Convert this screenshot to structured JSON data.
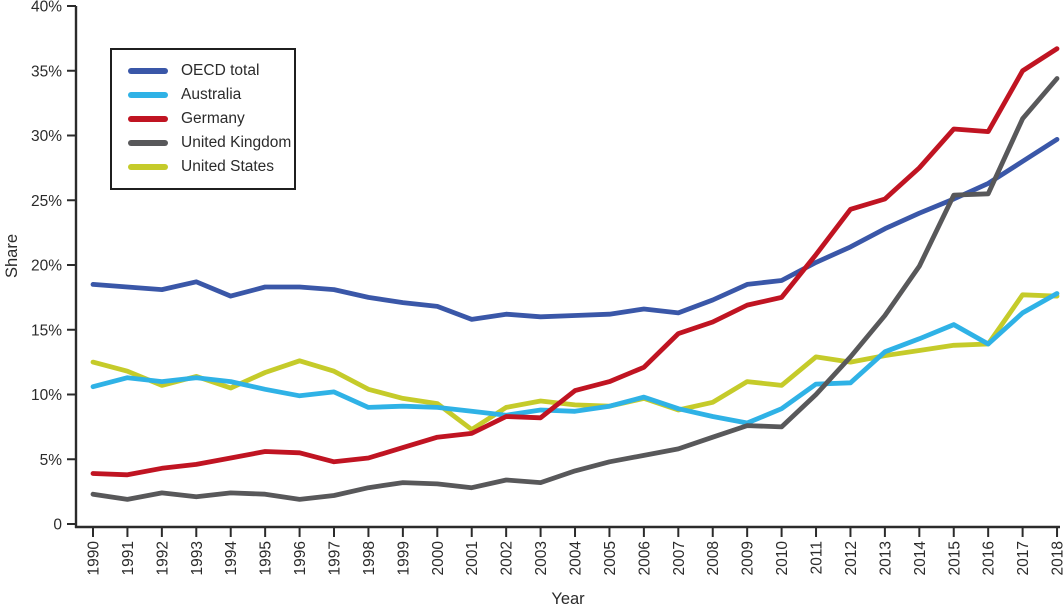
{
  "chart_data": {
    "type": "line",
    "title": "",
    "xlabel": "Year",
    "ylabel": "Share",
    "grid": false,
    "legend_position": "top-left",
    "x_tick_rotation": 90,
    "ylim": [
      0,
      40
    ],
    "y_ticks": {
      "values": [
        0,
        5,
        10,
        15,
        20,
        25,
        30,
        35,
        40
      ],
      "labels": [
        "0",
        "5%",
        "10%",
        "15%",
        "20%",
        "25%",
        "30%",
        "35%",
        "40%"
      ]
    },
    "x": [
      1990,
      1991,
      1992,
      1993,
      1994,
      1995,
      1996,
      1997,
      1998,
      1999,
      2000,
      2001,
      2002,
      2003,
      2004,
      2005,
      2006,
      2007,
      2008,
      2009,
      2010,
      2011,
      2012,
      2013,
      2014,
      2015,
      2016,
      2017,
      2018
    ],
    "series": [
      {
        "name": "OECD total",
        "color": "#3A57A8",
        "values": [
          18.5,
          18.3,
          18.1,
          18.7,
          17.6,
          18.3,
          18.3,
          18.1,
          17.5,
          17.1,
          16.8,
          15.8,
          16.2,
          16.0,
          16.1,
          16.2,
          16.6,
          16.3,
          17.3,
          18.5,
          18.8,
          20.2,
          21.4,
          22.8,
          24.0,
          25.1,
          26.3,
          28.0,
          29.7
        ]
      },
      {
        "name": "Australia",
        "color": "#2FB2E6",
        "values": [
          10.6,
          11.3,
          11.0,
          11.3,
          11.0,
          10.4,
          9.9,
          10.2,
          9.0,
          9.1,
          9.0,
          8.7,
          8.4,
          8.8,
          8.7,
          9.1,
          9.8,
          8.9,
          8.3,
          7.8,
          8.9,
          10.8,
          10.9,
          13.3,
          14.3,
          15.4,
          13.9,
          16.3,
          17.8
        ]
      },
      {
        "name": "Germany",
        "color": "#C01422",
        "values": [
          3.9,
          3.8,
          4.3,
          4.6,
          5.1,
          5.6,
          5.5,
          4.8,
          5.1,
          5.9,
          6.7,
          7.0,
          8.3,
          8.2,
          10.3,
          11.0,
          12.1,
          14.7,
          15.6,
          16.9,
          17.5,
          20.8,
          24.3,
          25.1,
          27.5,
          30.5,
          30.3,
          35.0,
          36.7
        ]
      },
      {
        "name": "United Kingdom",
        "color": "#58585A",
        "values": [
          2.3,
          1.9,
          2.4,
          2.1,
          2.4,
          2.3,
          1.9,
          2.2,
          2.8,
          3.2,
          3.1,
          2.8,
          3.4,
          3.2,
          4.1,
          4.8,
          5.3,
          5.8,
          6.7,
          7.6,
          7.5,
          10.0,
          12.9,
          16.1,
          19.9,
          25.4,
          25.5,
          31.3,
          34.4
        ]
      },
      {
        "name": "United States",
        "color": "#C5CB2A",
        "values": [
          12.5,
          11.8,
          10.7,
          11.4,
          10.5,
          11.7,
          12.6,
          11.8,
          10.4,
          9.7,
          9.3,
          7.3,
          9.0,
          9.5,
          9.2,
          9.1,
          9.7,
          8.8,
          9.4,
          11.0,
          10.7,
          12.9,
          12.5,
          13.0,
          13.4,
          13.8,
          13.9,
          17.7,
          17.6
        ]
      }
    ],
    "style": {
      "axis_color": "#2b2b2b",
      "text_color": "#2b2b2b",
      "background": "#ffffff",
      "line_width": 4.8
    }
  }
}
